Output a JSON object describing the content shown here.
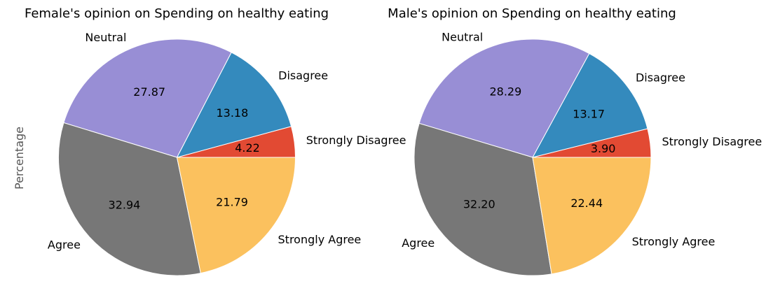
{
  "chart_data": [
    {
      "type": "pie",
      "title": "Female's opinion on Spending on healthy eating",
      "ylabel": "Percentage",
      "start_angle_deg": 0,
      "direction": "counterclockwise",
      "categories": [
        "Strongly Disagree",
        "Disagree",
        "Neutral",
        "Agree",
        "Strongly Agree"
      ],
      "values": [
        4.22,
        13.18,
        27.87,
        32.94,
        21.79
      ],
      "value_labels": [
        "4.22",
        "13.18",
        "27.87",
        "32.94",
        "21.79"
      ],
      "colors": [
        "#E24A33",
        "#348ABD",
        "#988ED5",
        "#777777",
        "#FBC15E"
      ]
    },
    {
      "type": "pie",
      "title": "Male's opinion on Spending on healthy eating",
      "ylabel": "",
      "start_angle_deg": 0,
      "direction": "counterclockwise",
      "categories": [
        "Strongly Disagree",
        "Disagree",
        "Neutral",
        "Agree",
        "Strongly Agree"
      ],
      "values": [
        3.9,
        13.17,
        28.29,
        32.2,
        22.44
      ],
      "value_labels": [
        "3.90",
        "13.17",
        "28.29",
        "32.20",
        "22.44"
      ],
      "colors": [
        "#E24A33",
        "#348ABD",
        "#988ED5",
        "#777777",
        "#FBC15E"
      ]
    }
  ]
}
